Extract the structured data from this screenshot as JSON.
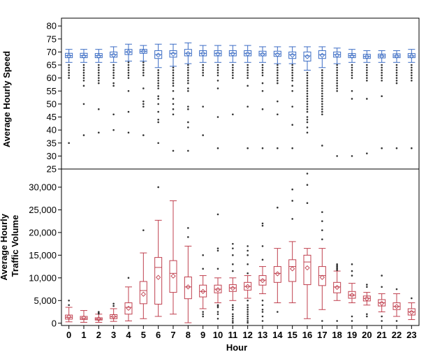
{
  "chart_data": {
    "type": "boxplot",
    "xlabel": "Hour",
    "categories": [
      "0",
      "1",
      "2",
      "3",
      "4",
      "5",
      "6",
      "7",
      "8",
      "9",
      "10",
      "11",
      "12",
      "13",
      "14",
      "15",
      "16",
      "17",
      "18",
      "19",
      "20",
      "21",
      "22",
      "23"
    ],
    "colors": {
      "speed": "#3b6cc4",
      "volume": "#c0404f",
      "grid": "#000000"
    },
    "panels": [
      {
        "id": "speed",
        "ylabel": "Average Hourly Speed",
        "ylim": [
          25,
          83
        ],
        "yticks": [
          25,
          30,
          35,
          40,
          45,
          50,
          55,
          60,
          65,
          70,
          75,
          80
        ],
        "ytick_labels": [
          "25",
          "30",
          "35",
          "40",
          "45",
          "50",
          "55",
          "60",
          "65",
          "70",
          "75",
          "80"
        ],
        "boxes": [
          {
            "min": 66,
            "q1": 67.8,
            "median": 68.6,
            "mean": 68.5,
            "q3": 69.5,
            "max": 71,
            "outliers": [
              65,
              64,
              63,
              62,
              61,
              60,
              35
            ]
          },
          {
            "min": 66,
            "q1": 67.8,
            "median": 68.6,
            "mean": 68.4,
            "q3": 69.5,
            "max": 71,
            "outliers": [
              65,
              64,
              63,
              62,
              61,
              60,
              59,
              57,
              50,
              38
            ]
          },
          {
            "min": 66,
            "q1": 67.8,
            "median": 68.6,
            "mean": 68.4,
            "q3": 69.4,
            "max": 71,
            "outliers": [
              65,
              64,
              63,
              62,
              61,
              60,
              59,
              58,
              48,
              39
            ]
          },
          {
            "min": 66,
            "q1": 68,
            "median": 69,
            "mean": 68.8,
            "q3": 70,
            "max": 72,
            "outliers": [
              65,
              64,
              63,
              62,
              61,
              60,
              58,
              57,
              46,
              40
            ]
          },
          {
            "min": 66.5,
            "q1": 69,
            "median": 70,
            "mean": 70,
            "q3": 71,
            "max": 73,
            "outliers": [
              66,
              65,
              64,
              63,
              62,
              61,
              60,
              55,
              47,
              39
            ]
          },
          {
            "min": 66.5,
            "q1": 69.5,
            "median": 70.3,
            "mean": 70.2,
            "q3": 71,
            "max": 72.5,
            "outliers": [
              66,
              65,
              64,
              63,
              62,
              61,
              56,
              51,
              50,
              49,
              38
            ]
          },
          {
            "min": 64,
            "q1": 67.5,
            "median": 69,
            "mean": 68.8,
            "q3": 70.5,
            "max": 73,
            "outliers": [
              63,
              62,
              61,
              60,
              59,
              58,
              57,
              56,
              53,
              52,
              50,
              47,
              44,
              43,
              35
            ]
          },
          {
            "min": 64.5,
            "q1": 68,
            "median": 69.5,
            "mean": 69.2,
            "q3": 70.5,
            "max": 73,
            "outliers": [
              64,
              63,
              62,
              61,
              60,
              59,
              58,
              57,
              55,
              52,
              50,
              48,
              46,
              32
            ]
          },
          {
            "min": 65.5,
            "q1": 68.5,
            "median": 69.5,
            "mean": 69.4,
            "q3": 71,
            "max": 73.5,
            "outliers": [
              65,
              64,
              63,
              62,
              61,
              60,
              59,
              58,
              56,
              55,
              49,
              48,
              43,
              41,
              32
            ]
          },
          {
            "min": 66,
            "q1": 68.5,
            "median": 69.5,
            "mean": 69.4,
            "q3": 70.5,
            "max": 72.5,
            "outliers": [
              65,
              64,
              63,
              62,
              61,
              49,
              38
            ]
          },
          {
            "min": 66,
            "q1": 68.5,
            "median": 69.5,
            "mean": 69.3,
            "q3": 70.5,
            "max": 72.5,
            "outliers": [
              65,
              64,
              63,
              62,
              61,
              59,
              56,
              45,
              33
            ]
          },
          {
            "min": 66,
            "q1": 68.5,
            "median": 69.5,
            "mean": 69.3,
            "q3": 70.5,
            "max": 72.5,
            "outliers": [
              65,
              64,
              63,
              62,
              61,
              60,
              46
            ]
          },
          {
            "min": 66,
            "q1": 68.5,
            "median": 69.5,
            "mean": 69.3,
            "q3": 70.5,
            "max": 72.5,
            "outliers": [
              65,
              64,
              63,
              62,
              61,
              60,
              57,
              49,
              33
            ]
          },
          {
            "min": 66,
            "q1": 68.5,
            "median": 69.3,
            "mean": 69.1,
            "q3": 70.3,
            "max": 72,
            "outliers": [
              65,
              64,
              63,
              62,
              61,
              58,
              55,
              48,
              33
            ]
          },
          {
            "min": 65.5,
            "q1": 68.3,
            "median": 69.3,
            "mean": 69,
            "q3": 70.3,
            "max": 72,
            "outliers": [
              65,
              64,
              63,
              62,
              61,
              60,
              59,
              58,
              51,
              46,
              33
            ]
          },
          {
            "min": 65.5,
            "q1": 67.5,
            "median": 69,
            "mean": 68.7,
            "q3": 70,
            "max": 72,
            "outliers": [
              65,
              64,
              63,
              62,
              61,
              60,
              59,
              57,
              55,
              49,
              42,
              33
            ]
          },
          {
            "min": 63,
            "q1": 66.5,
            "median": 68.5,
            "mean": 68.2,
            "q3": 70,
            "max": 72,
            "outliers": [
              62,
              61,
              60,
              59,
              58,
              57,
              56,
              55,
              54,
              53,
              52,
              51,
              50,
              49,
              48,
              47,
              45,
              44,
              43,
              41,
              39
            ]
          },
          {
            "min": 64,
            "q1": 67.5,
            "median": 69,
            "mean": 68.7,
            "q3": 70.5,
            "max": 72,
            "outliers": [
              63,
              62,
              61,
              60,
              59,
              58,
              57,
              56,
              55,
              54,
              53,
              52,
              51,
              50,
              49,
              48,
              47,
              46,
              34
            ]
          },
          {
            "min": 65.5,
            "q1": 68,
            "median": 69,
            "mean": 68.8,
            "q3": 70,
            "max": 71.5,
            "outliers": [
              65,
              64,
              63,
              62,
              61,
              60,
              59,
              58,
              57,
              56,
              55,
              30
            ]
          },
          {
            "min": 66,
            "q1": 67.8,
            "median": 68.6,
            "mean": 68.4,
            "q3": 69.4,
            "max": 71,
            "outliers": [
              65,
              64,
              63,
              62,
              61,
              60,
              55,
              52,
              30
            ]
          },
          {
            "min": 66,
            "q1": 67.5,
            "median": 68.3,
            "mean": 68.2,
            "q3": 69.1,
            "max": 70.5,
            "outliers": [
              65,
              64,
              63,
              62,
              61,
              60,
              59,
              52,
              31
            ]
          },
          {
            "min": 66,
            "q1": 67.7,
            "median": 68.5,
            "mean": 68.4,
            "q3": 69.2,
            "max": 70.5,
            "outliers": [
              65,
              64,
              63,
              62,
              61,
              60,
              59,
              53,
              33
            ]
          },
          {
            "min": 66,
            "q1": 67.8,
            "median": 68.5,
            "mean": 68.4,
            "q3": 69.3,
            "max": 70.5,
            "outliers": [
              65,
              64,
              63,
              62,
              61,
              60,
              59,
              58,
              33
            ]
          },
          {
            "min": 66,
            "q1": 67.8,
            "median": 68.5,
            "mean": 68.4,
            "q3": 69.4,
            "max": 71,
            "outliers": [
              65,
              64,
              63,
              62,
              61,
              60,
              59,
              33
            ]
          }
        ]
      },
      {
        "id": "volume",
        "ylabel": "Average Hourly Traffic Volume",
        "ylabel_lines": [
          "Average Hourly",
          "Traffic Volume"
        ],
        "ylim": [
          -500,
          34000
        ],
        "yticks": [
          0,
          5000,
          10000,
          15000,
          20000,
          25000,
          30000
        ],
        "ytick_labels": [
          "0",
          "5,000",
          "10,000",
          "15,000",
          "20,000",
          "25,000",
          "30,000"
        ],
        "boxes": [
          {
            "min": 300,
            "q1": 900,
            "median": 1300,
            "mean": 1400,
            "q3": 1800,
            "max": 3500,
            "outliers": [
              4000,
              5000
            ]
          },
          {
            "min": 200,
            "q1": 800,
            "median": 1100,
            "mean": 1200,
            "q3": 1500,
            "max": 2800,
            "outliers": []
          },
          {
            "min": 200,
            "q1": 700,
            "median": 900,
            "mean": 950,
            "q3": 1200,
            "max": 2000,
            "outliers": [
              2100,
              2300,
              2500
            ]
          },
          {
            "min": 400,
            "q1": 1000,
            "median": 1400,
            "mean": 1500,
            "q3": 1900,
            "max": 3200,
            "outliers": [
              3800,
              4300
            ]
          },
          {
            "min": 500,
            "q1": 2000,
            "median": 3500,
            "mean": 3300,
            "q3": 4500,
            "max": 8000,
            "outliers": [
              10000
            ]
          },
          {
            "min": 1000,
            "q1": 4300,
            "median": 7200,
            "mean": 6400,
            "q3": 9200,
            "max": 15500,
            "outliers": [
              20500
            ]
          },
          {
            "min": 1500,
            "q1": 4200,
            "median": 12300,
            "mean": 10100,
            "q3": 14500,
            "max": 22700,
            "outliers": [
              30000
            ]
          },
          {
            "min": 2000,
            "q1": 6800,
            "median": 11000,
            "mean": 10400,
            "q3": 13800,
            "max": 27000,
            "outliers": []
          },
          {
            "min": 100,
            "q1": 5400,
            "median": 8000,
            "mean": 8000,
            "q3": 10200,
            "max": 17000,
            "outliers": [
              19000,
              21000
            ]
          },
          {
            "min": 3200,
            "q1": 5800,
            "median": 7000,
            "mean": 7000,
            "q3": 8400,
            "max": 10500,
            "outliers": [
              1500,
              2000,
              2500,
              12000,
              15000
            ]
          },
          {
            "min": 4500,
            "q1": 6700,
            "median": 7500,
            "mean": 7400,
            "q3": 8400,
            "max": 10000,
            "outliers": [
              1000,
              2000,
              2500,
              3500,
              3800,
              4000,
              12000,
              16000,
              16500,
              24000
            ]
          },
          {
            "min": 5000,
            "q1": 7000,
            "median": 7800,
            "mean": 7700,
            "q3": 8500,
            "max": 10000,
            "outliers": [
              100,
              500,
              1000,
              1500,
              2000,
              3000,
              3500,
              4000,
              11500,
              13000,
              15000,
              16500,
              17500
            ]
          },
          {
            "min": 5500,
            "q1": 7300,
            "median": 8100,
            "mean": 8100,
            "q3": 9000,
            "max": 10500,
            "outliers": [
              100,
              500,
              1000,
              1500,
              2000,
              2500,
              3000,
              3500,
              4000,
              5000,
              11000,
              13000,
              15000,
              16000,
              17000
            ]
          },
          {
            "min": 6500,
            "q1": 8400,
            "median": 9500,
            "mean": 9400,
            "q3": 10500,
            "max": 12500,
            "outliers": [
              500,
              1500,
              2500,
              3000,
              4000,
              5000,
              14000,
              17000,
              21500,
              22000
            ]
          },
          {
            "min": 4500,
            "q1": 9000,
            "median": 11000,
            "mean": 10900,
            "q3": 12500,
            "max": 16500,
            "outliers": [
              2500,
              25500
            ]
          },
          {
            "min": 4500,
            "q1": 9200,
            "median": 12500,
            "mean": 12000,
            "q3": 14000,
            "max": 18000,
            "outliers": [
              23000,
              27000,
              29500
            ]
          },
          {
            "min": 1000,
            "q1": 8500,
            "median": 13500,
            "mean": 12200,
            "q3": 15000,
            "max": 16500,
            "outliers": [
              26500,
              30500,
              33000
            ]
          },
          {
            "min": 3000,
            "q1": 8300,
            "median": 10500,
            "mean": 10100,
            "q3": 12500,
            "max": 16500,
            "outliers": [
              500,
              18500,
              20500,
              22500,
              24500
            ]
          },
          {
            "min": 5000,
            "q1": 6700,
            "median": 8000,
            "mean": 7900,
            "q3": 9000,
            "max": 11500,
            "outliers": [
              500,
              11700,
              12000,
              12200,
              12500,
              12700,
              13000
            ]
          },
          {
            "min": 4500,
            "q1": 5500,
            "median": 6200,
            "mean": 6200,
            "q3": 7000,
            "max": 8800,
            "outliers": [
              500,
              1500,
              10500,
              11500,
              13000
            ]
          },
          {
            "min": 4000,
            "q1": 4900,
            "median": 5500,
            "mean": 5400,
            "q3": 6000,
            "max": 6800,
            "outliers": [
              1500,
              2000,
              8000,
              8500
            ]
          },
          {
            "min": 2500,
            "q1": 3800,
            "median": 4500,
            "mean": 4400,
            "q3": 5200,
            "max": 6500,
            "outliers": [
              500,
              1500,
              8000,
              10500
            ]
          },
          {
            "min": 1500,
            "q1": 3000,
            "median": 3700,
            "mean": 3700,
            "q3": 4500,
            "max": 6500,
            "outliers": [
              500,
              7500
            ]
          },
          {
            "min": 800,
            "q1": 1800,
            "median": 2500,
            "mean": 2400,
            "q3": 3200,
            "max": 4500,
            "outliers": [
              5500
            ]
          }
        ]
      }
    ]
  }
}
